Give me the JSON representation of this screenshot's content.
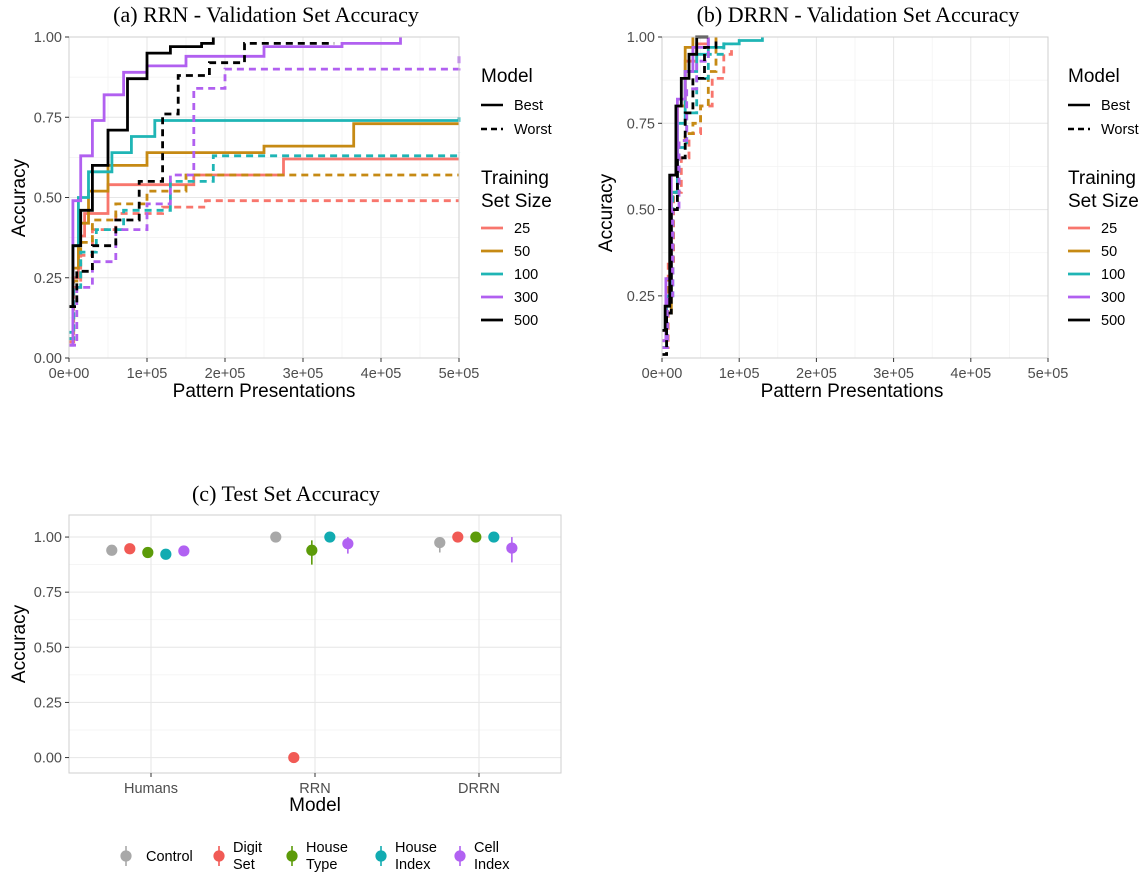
{
  "chart_data": [
    {
      "panel": "a",
      "type": "line",
      "title": "(a) RRN - Validation Set Accuracy",
      "xlabel": "Pattern Presentations",
      "ylabel": "Accuracy",
      "xlim": [
        0,
        500000
      ],
      "ylim": [
        0,
        1
      ],
      "x_ticks": [
        0,
        100000,
        200000,
        300000,
        400000,
        500000
      ],
      "x_tick_labels": [
        "0e+00",
        "1e+05",
        "2e+05",
        "3e+05",
        "4e+05",
        "5e+05"
      ],
      "y_ticks": [
        0,
        0.25,
        0.5,
        0.75,
        1.0
      ],
      "y_tick_labels": [
        "0.00",
        "0.25",
        "0.50",
        "0.75",
        "1.00"
      ],
      "grid": true,
      "legend_placement": "right",
      "series": [
        {
          "model": "Best",
          "size": "25",
          "x": [
            0,
            5000,
            12000,
            20000,
            50000,
            100000,
            160000,
            260000,
            275000,
            500000
          ],
          "y": [
            0.05,
            0.25,
            0.38,
            0.45,
            0.54,
            0.54,
            0.57,
            0.57,
            0.62,
            0.62
          ]
        },
        {
          "model": "Worst",
          "size": "25",
          "x": [
            0,
            6000,
            15000,
            30000,
            60000,
            120000,
            175000,
            500000
          ],
          "y": [
            0.05,
            0.22,
            0.32,
            0.4,
            0.45,
            0.47,
            0.49,
            0.49
          ]
        },
        {
          "model": "Best",
          "size": "50",
          "x": [
            0,
            5000,
            12000,
            25000,
            50000,
            100000,
            160000,
            250000,
            350000,
            365000,
            500000
          ],
          "y": [
            0.06,
            0.28,
            0.42,
            0.52,
            0.6,
            0.64,
            0.64,
            0.66,
            0.66,
            0.73,
            0.73
          ]
        },
        {
          "model": "Worst",
          "size": "50",
          "x": [
            0,
            6000,
            15000,
            30000,
            60000,
            100000,
            150000,
            500000
          ],
          "y": [
            0.06,
            0.24,
            0.36,
            0.43,
            0.48,
            0.52,
            0.57,
            0.57
          ]
        },
        {
          "model": "Best",
          "size": "100",
          "x": [
            0,
            5000,
            12000,
            25000,
            55000,
            80000,
            110000,
            430000,
            500000
          ],
          "y": [
            0.08,
            0.35,
            0.5,
            0.58,
            0.64,
            0.69,
            0.74,
            0.74,
            0.75
          ]
        },
        {
          "model": "Worst",
          "size": "100",
          "x": [
            0,
            6000,
            15000,
            35000,
            70000,
            130000,
            185000,
            430000,
            500000
          ],
          "y": [
            0.06,
            0.22,
            0.33,
            0.4,
            0.46,
            0.55,
            0.63,
            0.63,
            0.64
          ]
        },
        {
          "model": "Best",
          "size": "300",
          "x": [
            0,
            5000,
            15000,
            30000,
            45000,
            70000,
            100000,
            150000,
            250000,
            350000,
            420000,
            425000
          ],
          "y": [
            0.04,
            0.49,
            0.63,
            0.74,
            0.82,
            0.89,
            0.91,
            0.94,
            0.97,
            0.98,
            0.98,
            1.0
          ]
        },
        {
          "model": "Worst",
          "size": "300",
          "x": [
            0,
            10000,
            30000,
            60000,
            100000,
            130000,
            160000,
            200000,
            500000
          ],
          "y": [
            0.04,
            0.22,
            0.3,
            0.4,
            0.48,
            0.57,
            0.84,
            0.9,
            0.94
          ]
        },
        {
          "model": "Best",
          "size": "500",
          "x": [
            0,
            5000,
            15000,
            30000,
            50000,
            75000,
            100000,
            130000,
            170000,
            185000
          ],
          "y": [
            0.16,
            0.35,
            0.46,
            0.6,
            0.71,
            0.87,
            0.95,
            0.97,
            0.98,
            1.0
          ]
        },
        {
          "model": "Worst",
          "size": "500",
          "x": [
            0,
            10000,
            30000,
            60000,
            90000,
            120000,
            140000,
            180000,
            225000,
            340000
          ],
          "y": [
            0.16,
            0.27,
            0.35,
            0.43,
            0.55,
            0.76,
            0.88,
            0.92,
            0.98,
            0.98
          ]
        }
      ]
    },
    {
      "panel": "b",
      "type": "line",
      "title": "(b) DRRN - Validation Set Accuracy",
      "xlabel": "Pattern Presentations",
      "ylabel": "Accuracy",
      "xlim": [
        0,
        500000
      ],
      "ylim": [
        0.07,
        1
      ],
      "x_ticks": [
        0,
        100000,
        200000,
        300000,
        400000,
        500000
      ],
      "x_tick_labels": [
        "0e+00",
        "1e+05",
        "2e+05",
        "3e+05",
        "4e+05",
        "5e+05"
      ],
      "y_ticks": [
        0.25,
        0.5,
        0.75,
        1.0
      ],
      "y_tick_labels": [
        "0.25",
        "0.50",
        "0.75",
        "1.00"
      ],
      "grid": true,
      "legend_placement": "right",
      "series": [
        {
          "model": "Best",
          "size": "25",
          "x": [
            0,
            5000,
            12000,
            20000,
            30000,
            45000,
            60000
          ],
          "y": [
            0.15,
            0.25,
            0.55,
            0.8,
            0.93,
            0.98,
            1.0
          ]
        },
        {
          "model": "Worst",
          "size": "25",
          "x": [
            0,
            8000,
            15000,
            25000,
            35000,
            50000,
            65000,
            80000,
            90000
          ],
          "y": [
            0.1,
            0.35,
            0.55,
            0.65,
            0.72,
            0.8,
            0.88,
            0.95,
            0.98
          ]
        },
        {
          "model": "Best",
          "size": "50",
          "x": [
            0,
            5000,
            12000,
            20000,
            30000,
            40000
          ],
          "y": [
            0.12,
            0.2,
            0.55,
            0.8,
            0.97,
            1.0
          ]
        },
        {
          "model": "Worst",
          "size": "50",
          "x": [
            0,
            7000,
            14000,
            22000,
            30000,
            40000,
            50000,
            60000,
            70000
          ],
          "y": [
            0.1,
            0.3,
            0.55,
            0.7,
            0.72,
            0.75,
            0.8,
            0.9,
            1.0
          ]
        },
        {
          "model": "Best",
          "size": "100",
          "x": [
            0,
            6000,
            12000,
            20000,
            30000,
            45000,
            60000,
            80000,
            100000,
            130000
          ],
          "y": [
            0.1,
            0.25,
            0.55,
            0.75,
            0.9,
            0.95,
            0.97,
            0.98,
            0.99,
            1.0
          ]
        },
        {
          "model": "Worst",
          "size": "100",
          "x": [
            0,
            7000,
            14000,
            22000,
            32000,
            45000,
            60000,
            80000
          ],
          "y": [
            0.1,
            0.25,
            0.55,
            0.68,
            0.78,
            0.88,
            0.95,
            1.0
          ]
        },
        {
          "model": "Best",
          "size": "300",
          "x": [
            0,
            5000,
            12000,
            20000,
            30000,
            40000,
            60000
          ],
          "y": [
            0.12,
            0.3,
            0.6,
            0.82,
            0.9,
            0.97,
            1.0
          ]
        },
        {
          "model": "Worst",
          "size": "300",
          "x": [
            0,
            7000,
            14000,
            22000,
            32000,
            45000,
            60000
          ],
          "y": [
            0.1,
            0.25,
            0.5,
            0.7,
            0.85,
            0.93,
            1.0
          ]
        },
        {
          "model": "Best",
          "size": "500",
          "x": [
            0,
            4000,
            10000,
            18000,
            25000,
            35000,
            45000,
            60000
          ],
          "y": [
            0.15,
            0.22,
            0.6,
            0.8,
            0.88,
            0.95,
            1.0,
            1.0
          ]
        },
        {
          "model": "Worst",
          "size": "500",
          "x": [
            0,
            6000,
            12000,
            20000,
            30000,
            40000,
            55000,
            70000
          ],
          "y": [
            0.08,
            0.2,
            0.5,
            0.65,
            0.78,
            0.88,
            0.97,
            1.0
          ]
        }
      ]
    },
    {
      "panel": "c",
      "type": "scatter",
      "title": "(c) Test Set Accuracy",
      "xlabel": "Model",
      "ylabel": "Accuracy",
      "categories": [
        "Humans",
        "RRN",
        "DRRN"
      ],
      "ylim": [
        -0.07,
        1.1
      ],
      "y_ticks": [
        0,
        0.25,
        0.5,
        0.75,
        1.0
      ],
      "y_tick_labels": [
        "0.00",
        "0.25",
        "0.50",
        "0.75",
        "1.00"
      ],
      "grid": true,
      "legend_placement": "bottom",
      "series": [
        {
          "name": "Control",
          "values": [
            0.94,
            1.0,
            0.975
          ],
          "err_low": [
            0.925,
            0.985,
            0.93
          ],
          "err_high": [
            0.955,
            1.0,
            1.0
          ]
        },
        {
          "name": "Digit\nSet",
          "values": [
            0.947,
            0.0,
            1.0
          ],
          "err_low": [
            0.935,
            0.0,
            1.0
          ],
          "err_high": [
            0.96,
            0.0,
            1.0
          ]
        },
        {
          "name": "House\nType",
          "values": [
            0.93,
            0.94,
            1.0
          ],
          "err_low": [
            0.915,
            0.875,
            1.0
          ],
          "err_high": [
            0.945,
            0.985,
            1.0
          ]
        },
        {
          "name": "House\nIndex",
          "values": [
            0.922,
            1.0,
            1.0
          ],
          "err_low": [
            0.905,
            0.985,
            1.0
          ],
          "err_high": [
            0.94,
            1.0,
            1.0
          ]
        },
        {
          "name": "Cell\nIndex",
          "values": [
            0.937,
            0.97,
            0.95
          ],
          "err_low": [
            0.92,
            0.925,
            0.885
          ],
          "err_high": [
            0.955,
            1.0,
            1.0
          ]
        }
      ]
    }
  ],
  "legend_ab": {
    "model_title": "Model",
    "model_items": [
      {
        "label": "Best",
        "dash": false
      },
      {
        "label": "Worst",
        "dash": true
      }
    ],
    "size_title_line1": "Training",
    "size_title_line2": "Set Size",
    "size_items": [
      "25",
      "50",
      "100",
      "300",
      "500"
    ]
  },
  "colors": {
    "sizes": {
      "25": "#f8766d",
      "50": "#c68a14",
      "100": "#1fb5b5",
      "300": "#b160f0",
      "500": "#000000"
    },
    "categories": [
      "#a8a8a8",
      "#f15a55",
      "#5c9b09",
      "#11abb1",
      "#b162f2"
    ]
  }
}
